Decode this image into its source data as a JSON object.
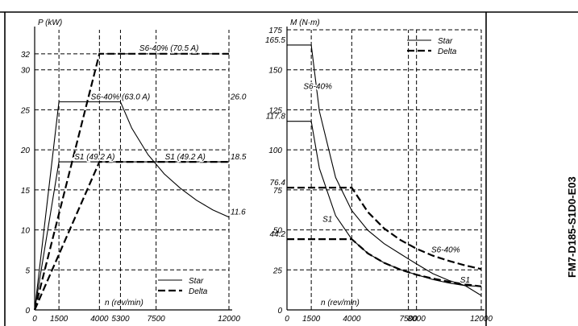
{
  "figure_code": "FM7-D185-S1D0-E03",
  "chart_data": [
    {
      "type": "line",
      "ylabel": "P (kW)",
      "xlabel": "n (rev/min)",
      "xlim": [
        0,
        12000
      ],
      "ylim": [
        0,
        35
      ],
      "x_ticks": [
        0,
        1500,
        4000,
        5300,
        7500,
        12000
      ],
      "y_ticks": [
        0,
        5,
        10,
        15,
        20,
        25,
        30,
        32
      ],
      "grid": true,
      "legend": {
        "placement": "bottom-right",
        "entries": [
          {
            "name": "Star",
            "style": "solid"
          },
          {
            "name": "Delta",
            "style": "dashed"
          }
        ]
      },
      "series": [
        {
          "name": "Star",
          "style": "solid",
          "x": [
            0,
            1500,
            5300,
            6000,
            7000,
            8000,
            9000,
            10000,
            11000,
            12000
          ],
          "y": [
            0,
            26.0,
            26.0,
            22.7,
            19.4,
            17.0,
            15.2,
            13.7,
            12.5,
            11.6
          ]
        },
        {
          "name": "Star",
          "style": "solid",
          "x": [
            0,
            1500,
            12000
          ],
          "y": [
            0,
            18.5,
            18.5
          ]
        },
        {
          "name": "Delta",
          "style": "dashed",
          "x": [
            0,
            4000,
            12000
          ],
          "y": [
            0,
            32,
            32
          ]
        },
        {
          "name": "Delta",
          "style": "dashed",
          "x": [
            0,
            4000,
            12000
          ],
          "y": [
            0,
            18.5,
            18.5
          ]
        }
      ],
      "annotations": [
        {
          "text": "S6-40% (70.5 A)",
          "x": 8300,
          "y": 32.8
        },
        {
          "text": "S6-40% (63.0 A)",
          "x": 5300,
          "y": 26.7
        },
        {
          "text": "S1 (49.2 A)",
          "x": 3700,
          "y": 19.2
        },
        {
          "text": "S1 (49.2 A)",
          "x": 9300,
          "y": 19.2
        },
        {
          "text": "26.0",
          "x": 12750,
          "y": 26.0
        },
        {
          "text": "18.5",
          "x": 12750,
          "y": 18.5
        },
        {
          "text": "11.6",
          "x": 12750,
          "y": 11.6
        }
      ]
    },
    {
      "type": "line",
      "ylabel": "M (N·m)",
      "xlabel": "n (rev/min)",
      "xlim": [
        0,
        12000
      ],
      "ylim": [
        0,
        175
      ],
      "x_ticks": [
        0,
        1500,
        4000,
        7500,
        8000,
        12000
      ],
      "y_ticks": [
        0,
        25,
        50,
        75,
        100,
        125,
        150,
        175
      ],
      "grid": true,
      "legend": {
        "placement": "top-right",
        "entries": [
          {
            "name": "Star",
            "style": "solid"
          },
          {
            "name": "Delta",
            "style": "dashed"
          }
        ]
      },
      "series": [
        {
          "name": "Star",
          "style": "solid",
          "x": [
            0,
            1500,
            2000,
            3000,
            4000,
            5000,
            6000,
            7000,
            8000,
            9000,
            10000,
            11000,
            12000
          ],
          "y": [
            165.5,
            165.5,
            124.1,
            82.7,
            62.1,
            49.7,
            41.4,
            35.0,
            28.7,
            22.7,
            18.4,
            15.2,
            9.0
          ]
        },
        {
          "name": "Star",
          "style": "solid",
          "x": [
            0,
            1500,
            2000,
            3000,
            4000,
            5000,
            6000,
            7000,
            8000,
            9000,
            10000,
            11000,
            12000
          ],
          "y": [
            117.8,
            117.8,
            88.4,
            58.9,
            44.2,
            35.3,
            29.4,
            25.2,
            22.0,
            19.0,
            16.8,
            15.2,
            14.7
          ]
        },
        {
          "name": "Delta",
          "style": "dashed",
          "x": [
            0,
            4000,
            5000,
            6000,
            7000,
            8000,
            9000,
            10000,
            11000,
            12000
          ],
          "y": [
            76.4,
            76.4,
            61.1,
            50.9,
            43.7,
            38.2,
            33.9,
            30.6,
            27.8,
            25.5
          ]
        },
        {
          "name": "Delta",
          "style": "dashed",
          "x": [
            0,
            4000,
            5000,
            6000,
            7000,
            8000,
            9000,
            10000,
            11000,
            12000
          ],
          "y": [
            44.2,
            44.2,
            35.3,
            29.4,
            25.2,
            22.0,
            19.6,
            17.6,
            16.0,
            14.7
          ]
        }
      ],
      "annotations": [
        {
          "text": "165.5",
          "x": -900,
          "y": 165.5
        },
        {
          "text": "117.8",
          "x": -900,
          "y": 117.8
        },
        {
          "text": "76.4",
          "x": -900,
          "y": 76.4
        },
        {
          "text": "44.2",
          "x": -900,
          "y": 44.2
        },
        {
          "text": "S6-40%",
          "x": 1900,
          "y": 140
        },
        {
          "text": "S1",
          "x": 2500,
          "y": 57
        },
        {
          "text": "S6-40%",
          "x": 9800,
          "y": 38
        },
        {
          "text": "S1",
          "x": 11000,
          "y": 19
        }
      ]
    }
  ]
}
